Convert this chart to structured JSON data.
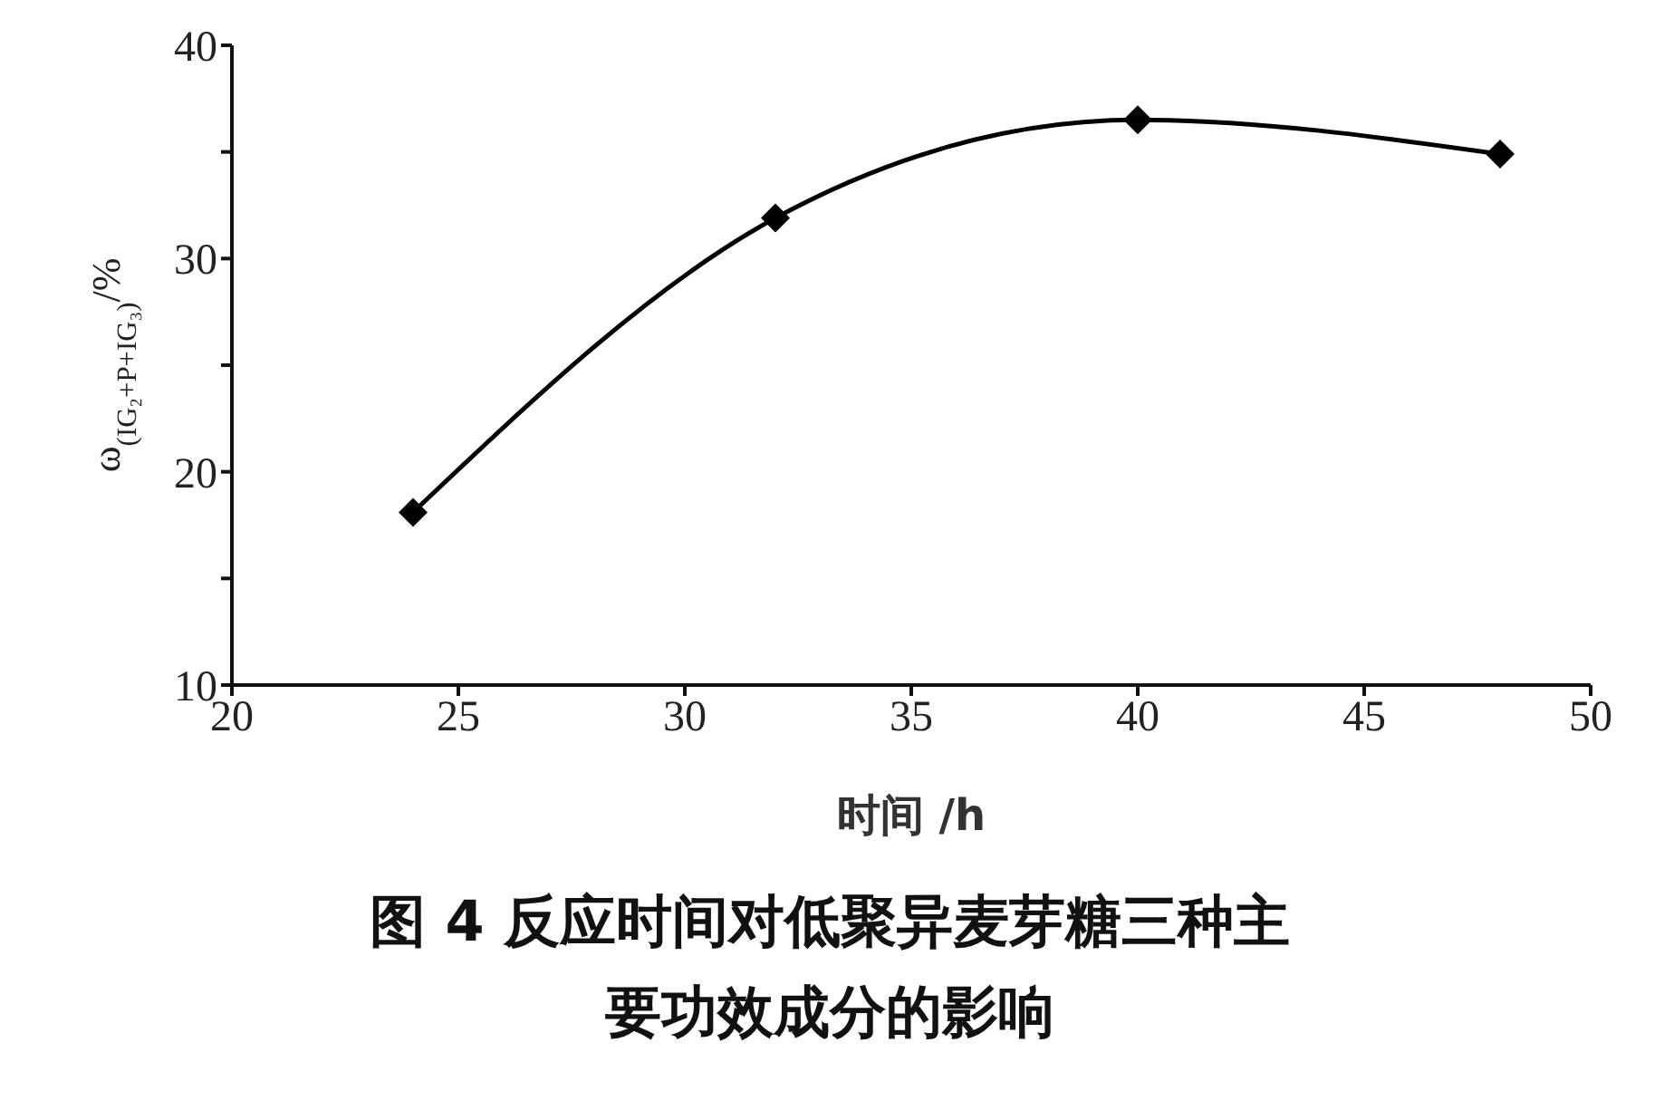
{
  "chart_data": {
    "type": "line",
    "title": "图 4  反应时间对低聚异麦芽糖三种主要功效成分的影响",
    "xlabel": "时间 /h",
    "ylabel": "ω$_{(IG₂+P+IG₃)}$/%",
    "x": [
      24,
      32,
      40,
      48
    ],
    "series": [
      {
        "color": "#000000",
        "values": [
          18.1,
          31.9,
          36.5,
          34.9
        ]
      }
    ],
    "xlim": [
      20,
      50
    ],
    "xticks": [
      20,
      25,
      30,
      35,
      40,
      45,
      50
    ],
    "ylim": [
      10,
      40
    ],
    "yticks": [
      10,
      {
        "value": 15,
        "label": null
      },
      20,
      {
        "value": 25,
        "label": null
      },
      30,
      {
        "value": 35,
        "label": null
      },
      40
    ],
    "grid": false,
    "legend": false,
    "marker": "diamond",
    "line_style": "solid"
  }
}
